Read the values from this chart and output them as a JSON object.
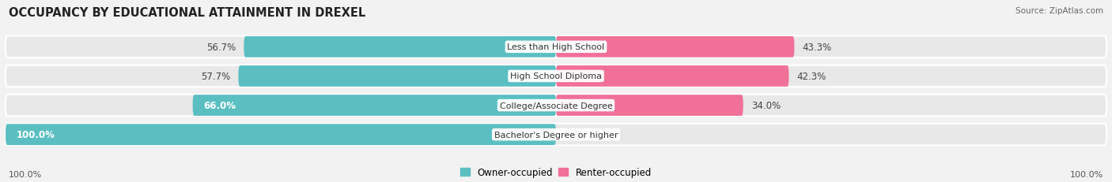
{
  "title": "OCCUPANCY BY EDUCATIONAL ATTAINMENT IN DREXEL",
  "source": "Source: ZipAtlas.com",
  "categories": [
    "Less than High School",
    "High School Diploma",
    "College/Associate Degree",
    "Bachelor's Degree or higher"
  ],
  "owner_pct": [
    56.7,
    57.7,
    66.0,
    100.0
  ],
  "renter_pct": [
    43.3,
    42.3,
    34.0,
    0.0
  ],
  "owner_color": "#5bbfc2",
  "renter_color": "#f07098",
  "renter_color_light": "#f5b8cb",
  "bg_color": "#f2f2f2",
  "row_bg_color": "#e8e8e8",
  "title_fontsize": 10.5,
  "label_fontsize": 8.5,
  "cat_fontsize": 8.0,
  "source_fontsize": 7.5,
  "axis_label_left": "100.0%",
  "axis_label_right": "100.0%"
}
